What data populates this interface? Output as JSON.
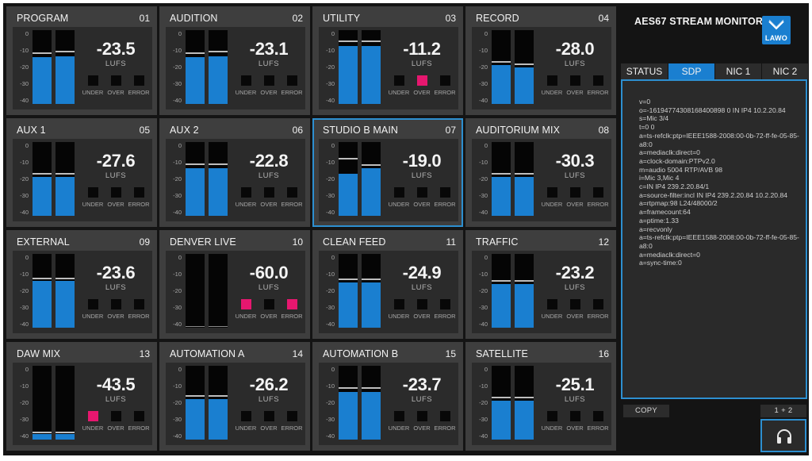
{
  "panel": {
    "title": "AES67 STREAM MONITOR",
    "logo_text": "LAWO",
    "tabs": [
      "STATUS",
      "SDP",
      "NIC 1",
      "NIC 2"
    ],
    "active_tab": "SDP",
    "sdp_text": "v=0\no=-1619477430816840​0898 0 IN IP4 10.2.20.84\ns=Mic 3/4\nt=0 0\na=ts-refclk:ptp=IEEE1588-2008:00-0b-72-ff-fe-05-85-a8:0\na=mediaclk:direct=0\na=clock-domain:PTPv2.0\nm=audio 5004 RTP/AVB 98\ni=Mic 3,Mic 4\nc=IN IP4 239.2.20.84/1\na=source-filter:incl IN IP4 239.2.20.84 10.2.20.84\na=rtpmap:98 L24/48000/2\na=framecount:64\na=ptime:1.33\na=recvonly\na=ts-refclk:ptp=IEEE1588-2008:00-0b-72-ff-fe-05-85-a8:0\na=mediaclk:direct=0\na=sync-time:0",
    "copy_label": "COPY",
    "mode_label": "1 + 2"
  },
  "colors": {
    "accent": "#1a7fd0",
    "alert": "#e6176f",
    "tile_bg": "#3e3e3e",
    "app_bg": "#141414"
  },
  "scale_ticks": [
    "0",
    "-10",
    "-20",
    "-30",
    "-40"
  ],
  "unit": "LUFS",
  "indicator_labels": [
    "UNDER",
    "OVER",
    "ERROR"
  ],
  "tiles": [
    {
      "name": "PROGRAM",
      "num": "01",
      "lufs": "-23.5",
      "level_l": 0.63,
      "level_r": 0.65,
      "peak_l": 0.68,
      "peak_r": 0.7,
      "under": false,
      "over": false,
      "error": false,
      "selected": false
    },
    {
      "name": "AUDITION",
      "num": "02",
      "lufs": "-23.1",
      "level_l": 0.63,
      "level_r": 0.65,
      "peak_l": 0.68,
      "peak_r": 0.7,
      "under": false,
      "over": false,
      "error": false,
      "selected": false
    },
    {
      "name": "UTILITY",
      "num": "03",
      "lufs": "-11.2",
      "level_l": 0.79,
      "level_r": 0.79,
      "peak_l": 0.84,
      "peak_r": 0.84,
      "under": false,
      "over": true,
      "error": false,
      "selected": false
    },
    {
      "name": "RECORD",
      "num": "04",
      "lufs": "-28.0",
      "level_l": 0.53,
      "level_r": 0.49,
      "peak_l": 0.56,
      "peak_r": 0.53,
      "under": false,
      "over": false,
      "error": false,
      "selected": false
    },
    {
      "name": "AUX 1",
      "num": "05",
      "lufs": "-27.6",
      "level_l": 0.53,
      "level_r": 0.53,
      "peak_l": 0.56,
      "peak_r": 0.56,
      "under": false,
      "over": false,
      "error": false,
      "selected": false
    },
    {
      "name": "AUX 2",
      "num": "06",
      "lufs": "-22.8",
      "level_l": 0.65,
      "level_r": 0.65,
      "peak_l": 0.69,
      "peak_r": 0.69,
      "under": false,
      "over": false,
      "error": false,
      "selected": false
    },
    {
      "name": "STUDIO B MAIN",
      "num": "07",
      "lufs": "-19.0",
      "level_l": 0.57,
      "level_r": 0.65,
      "peak_l": 0.76,
      "peak_r": 0.68,
      "under": false,
      "over": false,
      "error": false,
      "selected": true
    },
    {
      "name": "AUDITORIUM MIX",
      "num": "08",
      "lufs": "-30.3",
      "level_l": 0.53,
      "level_r": 0.53,
      "peak_l": 0.56,
      "peak_r": 0.56,
      "under": false,
      "over": false,
      "error": false,
      "selected": false
    },
    {
      "name": "EXTERNAL",
      "num": "09",
      "lufs": "-23.6",
      "level_l": 0.63,
      "level_r": 0.63,
      "peak_l": 0.66,
      "peak_r": 0.66,
      "under": false,
      "over": false,
      "error": false,
      "selected": false
    },
    {
      "name": "DENVER LIVE",
      "num": "10",
      "lufs": "-60.0",
      "level_l": 0.0,
      "level_r": 0.0,
      "peak_l": 0.0,
      "peak_r": 0.0,
      "under": true,
      "over": false,
      "error": true,
      "selected": false
    },
    {
      "name": "CLEAN FEED",
      "num": "11",
      "lufs": "-24.9",
      "level_l": 0.61,
      "level_r": 0.61,
      "peak_l": 0.64,
      "peak_r": 0.64,
      "under": false,
      "over": false,
      "error": false,
      "selected": false
    },
    {
      "name": "TRAFFIC",
      "num": "12",
      "lufs": "-23.2",
      "level_l": 0.59,
      "level_r": 0.59,
      "peak_l": 0.62,
      "peak_r": 0.62,
      "under": false,
      "over": false,
      "error": false,
      "selected": false
    },
    {
      "name": "DAW MIX",
      "num": "13",
      "lufs": "-43.5",
      "level_l": 0.07,
      "level_r": 0.07,
      "peak_l": 0.09,
      "peak_r": 0.09,
      "under": true,
      "over": false,
      "error": false,
      "selected": false
    },
    {
      "name": "AUTOMATION A",
      "num": "14",
      "lufs": "-26.2",
      "level_l": 0.55,
      "level_r": 0.55,
      "peak_l": 0.58,
      "peak_r": 0.58,
      "under": false,
      "over": false,
      "error": false,
      "selected": false
    },
    {
      "name": "AUTOMATION B",
      "num": "15",
      "lufs": "-23.7",
      "level_l": 0.65,
      "level_r": 0.65,
      "peak_l": 0.69,
      "peak_r": 0.69,
      "under": false,
      "over": false,
      "error": false,
      "selected": false
    },
    {
      "name": "SATELLITE",
      "num": "16",
      "lufs": "-25.1",
      "level_l": 0.53,
      "level_r": 0.53,
      "peak_l": 0.56,
      "peak_r": 0.56,
      "under": false,
      "over": false,
      "error": false,
      "selected": false
    }
  ]
}
